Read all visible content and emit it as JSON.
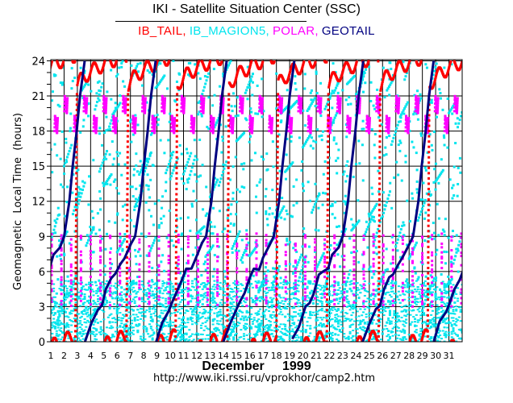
{
  "header": {
    "title": "IKI - Satellite Situation Center (SSC)",
    "legend": [
      {
        "label": "IB_TAIL,",
        "color": "#ff0000"
      },
      {
        "label": "IB_MAGION5,",
        "color": "#00e5ee"
      },
      {
        "label": "POLAR,",
        "color": "#ff00ff"
      },
      {
        "label": "GEOTAIL",
        "color": "#000080"
      }
    ]
  },
  "footer": {
    "url": "http://www.iki.rssi.ru/vprokhor/camp2.htm"
  },
  "chart_data": {
    "type": "scatter",
    "title": "IKI - Satellite Situation Center (SSC)",
    "xlabel": "December     1999",
    "ylabel": "Geomagnetic  Local Time  (hours)",
    "xlim": [
      1,
      32
    ],
    "ylim": [
      0,
      24.1
    ],
    "xticks": [
      1,
      2,
      3,
      4,
      5,
      6,
      7,
      8,
      9,
      10,
      11,
      12,
      13,
      14,
      15,
      16,
      17,
      18,
      19,
      20,
      21,
      22,
      23,
      24,
      25,
      26,
      27,
      28,
      29,
      30,
      31
    ],
    "yticks": [
      0,
      3,
      6,
      9,
      12,
      15,
      18,
      21,
      24
    ],
    "grid": true,
    "series": [
      {
        "name": "IB_MAGION5",
        "color": "#00e5ee",
        "style": "dots",
        "dense_band_hours": [
          0,
          5.2
        ],
        "dense_dots_per_day": 90,
        "sparse_dots_per_day": 95
      },
      {
        "name": "POLAR",
        "color": "#ff00ff",
        "style": "dots",
        "orbit_period_days": 0.735,
        "first_orbit_day": 0.55,
        "apogee_top_hours": [
          21.3,
          19.6
        ],
        "dayside_pass_hours": [
          3,
          9
        ]
      },
      {
        "name": "IB_TAIL",
        "color": "#ff0000",
        "style": "dots",
        "perigee_pass_days": [
          -0.9,
          2.85,
          6.7,
          10.4,
          14.3,
          18.0,
          21.8,
          25.7,
          29.4
        ],
        "night_start_hour": 21.3,
        "night_drift_hours": 3.2,
        "daily_wobble_hours": 0.6
      },
      {
        "name": "GEOTAIL",
        "color": "#000080",
        "style": "line",
        "cycle_start_days": [
          -1.8,
          3.55,
          8.9,
          14.0,
          19.2,
          24.5,
          29.8
        ],
        "cycle_profile": [
          [
            0,
            0
          ],
          [
            0.5,
            1.5
          ],
          [
            1.0,
            2.8
          ],
          [
            1.3,
            3.3
          ],
          [
            1.6,
            4.3
          ],
          [
            2.0,
            5.5
          ],
          [
            2.3,
            6.0
          ],
          [
            2.7,
            6.4
          ],
          [
            3.0,
            7.2
          ],
          [
            3.5,
            8.3
          ],
          [
            3.8,
            9.0
          ],
          [
            4.2,
            12.0
          ],
          [
            4.45,
            15.0
          ],
          [
            4.75,
            18.0
          ],
          [
            5.0,
            21.0
          ],
          [
            5.35,
            24.0
          ]
        ]
      }
    ]
  }
}
